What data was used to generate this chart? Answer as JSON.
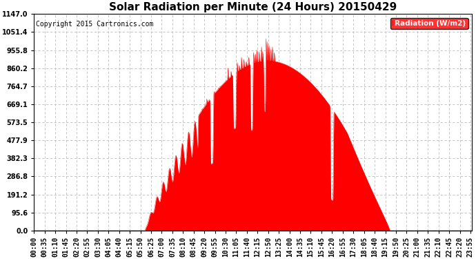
{
  "title": "Solar Radiation per Minute (24 Hours) 20150429",
  "copyright": "Copyright 2015 Cartronics.com",
  "ylabel": "Radiation (W/m2)",
  "yticks": [
    0.0,
    95.6,
    191.2,
    286.8,
    382.3,
    477.9,
    573.5,
    669.1,
    764.7,
    860.2,
    955.8,
    1051.4,
    1147.0
  ],
  "ymax": 1147.0,
  "fill_color": "#FF0000",
  "line_color": "#FF0000",
  "bg_color": "#FFFFFF",
  "grid_color": "#BBBBBB",
  "legend_bg": "#FF0000",
  "legend_text_color": "#FFFFFF",
  "title_fontsize": 11,
  "tick_fontsize": 7,
  "copyright_fontsize": 7
}
